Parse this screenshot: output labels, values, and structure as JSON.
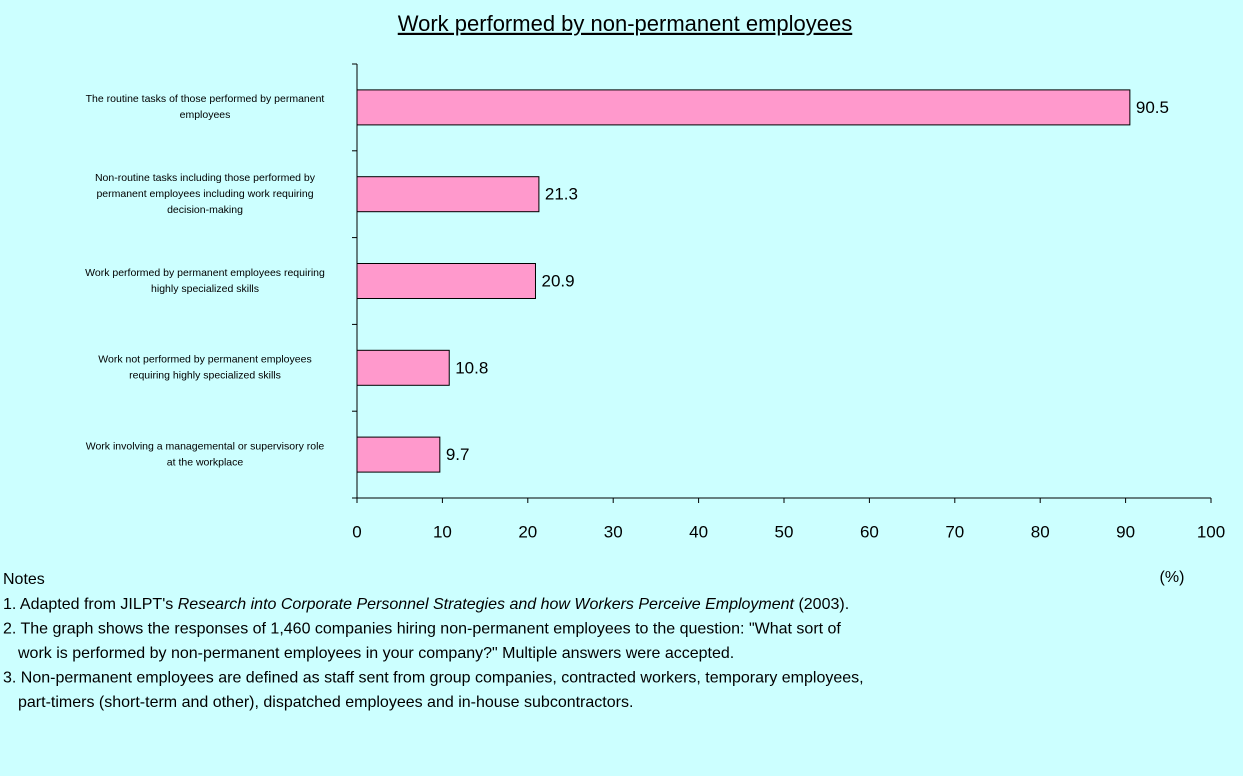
{
  "chart_data": {
    "type": "bar",
    "orientation": "horizontal",
    "title": "Work performed by non-permanent employees",
    "categories": [
      [
        "The routine tasks of those performed by permanent",
        "employees"
      ],
      [
        "Non-routine tasks including those performed by",
        "permanent employees including work requiring",
        "decision-making"
      ],
      [
        "Work performed by permanent employees requiring",
        "highly specialized skills"
      ],
      [
        "Work not performed by permanent employees",
        "requiring highly specialized skills"
      ],
      [
        "Work involving a managemental or supervisory role",
        "at the workplace"
      ]
    ],
    "values": [
      90.5,
      21.3,
      20.9,
      10.8,
      9.7
    ],
    "color": "#ff99cc",
    "xlim": [
      0,
      100
    ],
    "xticks": [
      0,
      10,
      20,
      30,
      40,
      50,
      60,
      70,
      80,
      90,
      100
    ],
    "xlabel": "(%)"
  },
  "notes": {
    "heading": "Notes",
    "items": [
      [
        [
          {
            "text": "1. Adapted from JILPT's "
          },
          {
            "text": "Research into Corporate Personnel Strategies and how Workers Perceive Employment",
            "italic": true
          },
          {
            "text": " (2003)."
          }
        ]
      ],
      [
        [
          {
            "text": "2. The graph shows the responses of 1,460 companies hiring non-permanent employees to the question: \"What sort of"
          }
        ],
        [
          {
            "text": "work is performed by non-permanent employees in your company?\" Multiple answers were accepted."
          }
        ]
      ],
      [
        [
          {
            "text": "3. Non-permanent employees are defined as staff sent from group companies, contracted workers, temporary employees,"
          }
        ],
        [
          {
            "text": "part-timers (short-term and other), dispatched employees and in-house subcontractors."
          }
        ]
      ]
    ]
  }
}
